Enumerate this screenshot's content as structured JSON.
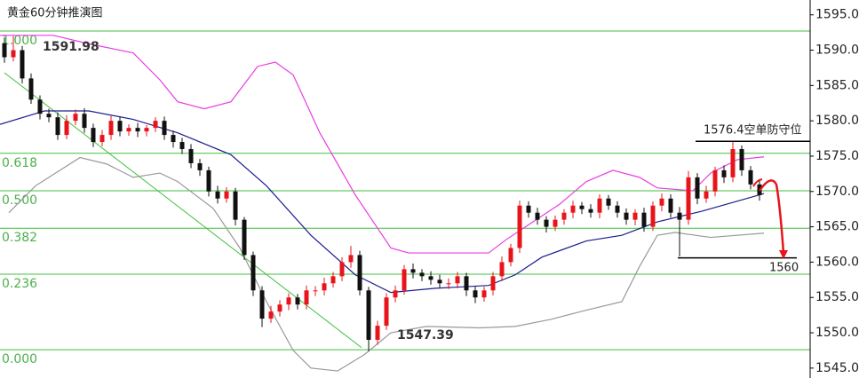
{
  "chart_data": {
    "type": "candlestick",
    "title": "黄金60分钟推演图",
    "xlim": [
      -0.5,
      90.7
    ],
    "ylim": [
      1543.6,
      1597.1
    ],
    "yticks": [
      {
        "value": 1545,
        "label": "1545.0"
      },
      {
        "value": 1550,
        "label": "1550.0"
      },
      {
        "value": 1555,
        "label": "1555.0"
      },
      {
        "value": 1560,
        "label": "1560.0"
      },
      {
        "value": 1565,
        "label": "1565.0"
      },
      {
        "value": 1570,
        "label": "1570.0"
      },
      {
        "value": 1575,
        "label": "1575.0"
      },
      {
        "value": 1580,
        "label": "1580.0"
      },
      {
        "value": 1585,
        "label": "1585.0"
      },
      {
        "value": 1590,
        "label": "1590.0"
      },
      {
        "value": 1595,
        "label": "1595.0"
      }
    ],
    "up_color": "#e8141b",
    "down_color": "#111111",
    "open": [
      1591,
      1589,
      1590,
      1586,
      1583,
      1581,
      1580.5,
      1578,
      1580,
      1581,
      1579,
      1577,
      1578,
      1580,
      1578.5,
      1579,
      1578.5,
      1579,
      1580,
      1578,
      1577,
      1576,
      1574,
      1573,
      1570,
      1569,
      1570,
      1566,
      1561,
      1556,
      1552,
      1553,
      1554,
      1555,
      1554,
      1556,
      1556,
      1557,
      1558,
      1560,
      1561,
      1556,
      1549,
      1551,
      1555,
      1556,
      1559,
      1558.5,
      1558,
      1557.5,
      1557,
      1557,
      1558,
      1556,
      1555,
      1556,
      1558,
      1560,
      1562,
      1568,
      1567,
      1566,
      1565,
      1566,
      1567,
      1568,
      1567.5,
      1567,
      1569,
      1568,
      1567,
      1566,
      1567,
      1565,
      1568,
      1569,
      1567,
      1566,
      1572,
      1569,
      1570,
      1573,
      1572,
      1576,
      1573,
      1571
    ],
    "high": [
      1591.8,
      1591.98,
      1590.6,
      1586.7,
      1583.6,
      1581.7,
      1581.2,
      1580.8,
      1581.6,
      1581.8,
      1579.6,
      1578.7,
      1580.7,
      1580.6,
      1579.5,
      1579.7,
      1579.4,
      1580.5,
      1580.6,
      1578.6,
      1577.6,
      1576.7,
      1574.6,
      1573.5,
      1570.8,
      1570.6,
      1570.5,
      1566.4,
      1561.5,
      1556.6,
      1553.8,
      1554.6,
      1555.6,
      1555.5,
      1556.7,
      1556.6,
      1557.8,
      1558.6,
      1560.7,
      1562.3,
      1561.6,
      1556.5,
      1551.7,
      1555.6,
      1556.7,
      1559.6,
      1559.8,
      1559,
      1558.7,
      1558.2,
      1557.7,
      1558.6,
      1558.5,
      1556.6,
      1556.5,
      1558.6,
      1560.8,
      1562.6,
      1568.7,
      1568.6,
      1567.7,
      1566.5,
      1566.6,
      1567.5,
      1568.7,
      1568.5,
      1568.2,
      1569.6,
      1569.5,
      1568.6,
      1567.6,
      1567.5,
      1567.7,
      1568.6,
      1569.7,
      1569.6,
      1567.8,
      1572.9,
      1572.6,
      1570.8,
      1573.5,
      1573.7,
      1577,
      1576.5,
      1573.6,
      1571.5
    ],
    "low": [
      1588.2,
      1588.4,
      1585.3,
      1582.4,
      1580.2,
      1579.8,
      1577.3,
      1577.4,
      1579.4,
      1578.3,
      1576.3,
      1576.4,
      1577.3,
      1577.8,
      1577.9,
      1577.7,
      1577.8,
      1578.4,
      1577.3,
      1576.2,
      1575.3,
      1573.3,
      1572.2,
      1569.3,
      1568.3,
      1568.4,
      1565.2,
      1560.3,
      1555.2,
      1550.8,
      1551.4,
      1552.3,
      1553.2,
      1553.3,
      1553.3,
      1555.2,
      1555.3,
      1556.4,
      1557.3,
      1559.2,
      1555.3,
      1547.39,
      1548.3,
      1550.4,
      1554.3,
      1555.4,
      1557.7,
      1557.3,
      1556.8,
      1556.4,
      1556.2,
      1556.3,
      1555.2,
      1554.2,
      1554.4,
      1555.3,
      1557.3,
      1559.4,
      1561.3,
      1566.3,
      1565.3,
      1564.2,
      1564.4,
      1565.3,
      1566.2,
      1566.8,
      1566.3,
      1566.2,
      1567.4,
      1566.3,
      1565.3,
      1565.2,
      1564.3,
      1564.4,
      1567.2,
      1566.3,
      1560.8,
      1565.3,
      1568.2,
      1568.4,
      1569.3,
      1571.2,
      1571.3,
      1572.2,
      1570.3,
      1568.7
    ],
    "close": [
      1589,
      1590,
      1586,
      1583,
      1581,
      1580.5,
      1578,
      1580,
      1581,
      1579,
      1577,
      1578,
      1580,
      1578.5,
      1579,
      1578.5,
      1579,
      1580,
      1578,
      1577,
      1576,
      1574,
      1573,
      1570,
      1569,
      1570,
      1566,
      1561,
      1556,
      1552,
      1553,
      1554,
      1555,
      1554,
      1556,
      1556,
      1557,
      1558,
      1560,
      1561,
      1556,
      1549,
      1551,
      1555,
      1556,
      1559,
      1558.5,
      1558,
      1557.5,
      1557,
      1557,
      1558,
      1556,
      1555,
      1556,
      1558,
      1560,
      1562,
      1568,
      1567,
      1566,
      1565,
      1566,
      1567,
      1568,
      1567.5,
      1567,
      1569,
      1568,
      1567,
      1566,
      1567,
      1565,
      1568,
      1569,
      1567,
      1566,
      1572,
      1569,
      1570,
      1573,
      1572,
      1576,
      1573,
      1571,
      1569.5
    ],
    "bands": [
      {
        "color": "#e83ee0",
        "x": [
          -0.5,
          5.5,
          9.5,
          14.5,
          17.5,
          19.5,
          22.5,
          25.5,
          28.5,
          30.5,
          32.5,
          35.5,
          39.5,
          43.5,
          45.5,
          54.5,
          56.5,
          59.5,
          62.5,
          65.5,
          68.5,
          71.5,
          73.5,
          77.5,
          79.5,
          82.5,
          85.5
        ],
        "values": [
          1592.1,
          1592.1,
          1590.9,
          1589.6,
          1585.8,
          1582.7,
          1581.7,
          1582.7,
          1587.7,
          1588.3,
          1586.5,
          1578.3,
          1569.5,
          1562,
          1561.3,
          1561.3,
          1563.2,
          1565.7,
          1568.2,
          1571.4,
          1573,
          1572,
          1570.5,
          1570.1,
          1572.6,
          1574.5,
          1574.9
        ]
      },
      {
        "color": "#1c1c8c",
        "x": [
          -0.5,
          4.5,
          9.5,
          14.5,
          19.5,
          25.5,
          29.5,
          34.5,
          39.5,
          43.5,
          48.5,
          54.5,
          57.5,
          60.5,
          65.5,
          69.5,
          73.5,
          78.5,
          85.5
        ],
        "values": [
          1579.5,
          1581.4,
          1581.4,
          1580.2,
          1578.3,
          1575.2,
          1570.8,
          1563.8,
          1558.2,
          1555.7,
          1556.3,
          1556.7,
          1558.2,
          1560.7,
          1563,
          1563.8,
          1565.7,
          1567.2,
          1569.7
        ]
      },
      {
        "color": "#999999",
        "x": [
          0.5,
          3.5,
          8.5,
          11.5,
          14.5,
          17.5,
          19.5,
          23.5,
          26.5,
          29.5,
          32.5,
          34.5,
          37.5,
          40.5,
          43.5,
          47.5,
          53.5,
          57.5,
          61.5,
          65.5,
          69.5,
          71.5,
          73.5,
          75.5,
          79.5,
          85.5
        ],
        "values": [
          1567,
          1570.8,
          1574.8,
          1573.9,
          1572,
          1572.6,
          1571.4,
          1567.6,
          1562,
          1554.4,
          1547.5,
          1545,
          1544.6,
          1546.9,
          1550,
          1550.9,
          1550.7,
          1550.9,
          1551.9,
          1553.2,
          1554.4,
          1559.4,
          1563.8,
          1564.2,
          1563.5,
          1564.1
        ]
      }
    ],
    "trendline": {
      "color": "#3fbf3f",
      "x": [
        0,
        40.2
      ],
      "values": [
        1586.8,
        1547.9
      ]
    },
    "fib_levels": {
      "color": "#3fbf3f",
      "labels": [
        "1.000",
        "0.618",
        "0.500",
        "0.382",
        "0.236",
        "0.000"
      ],
      "values": [
        1592.7,
        1575.4,
        1570.1,
        1564.8,
        1558.3,
        1547.6
      ]
    },
    "levels": [
      {
        "x": [
          77.8,
          90.7
        ],
        "value": 1577.1
      },
      {
        "x": [
          75.8,
          89.2
        ],
        "value": 1560.6
      }
    ],
    "annotations": [
      "1591.98",
      "1547.39",
      "1576.4空单防守位",
      "1560"
    ]
  }
}
